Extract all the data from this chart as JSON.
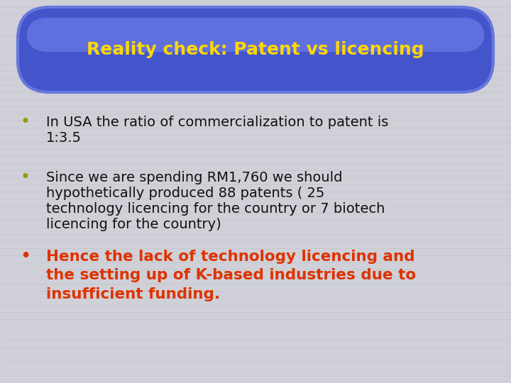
{
  "title": "Reality check: Patent vs licencing",
  "title_color": "#FFD700",
  "background_color": "#D0D0D8",
  "title_box_color": "#4455CC",
  "title_box_edge": "#6677DD",
  "title_highlight_color": "#7788EE",
  "bullet_color_olive": "#999900",
  "bullet_color_red": "#DD3300",
  "text_color_black": "#111111",
  "text_color_red": "#DD3300",
  "bullet1_line1": "In USA the ratio of commercialization to patent is",
  "bullet1_line2": "1:3.5",
  "bullet2_line1": "Since we are spending RM1,760 we should",
  "bullet2_line2": "hypothetically produced 88 patents ( 25",
  "bullet2_line3": "technology licencing for the country or 7 biotech",
  "bullet2_line4": "licencing for the country)",
  "bullet3_line1": "Hence the lack of technology licencing and",
  "bullet3_line2": "the setting up of K-based industries due to",
  "bullet3_line3": "insufficient funding.",
  "font_size_body": 14,
  "font_size_title": 18,
  "font_size_red": 15.5
}
